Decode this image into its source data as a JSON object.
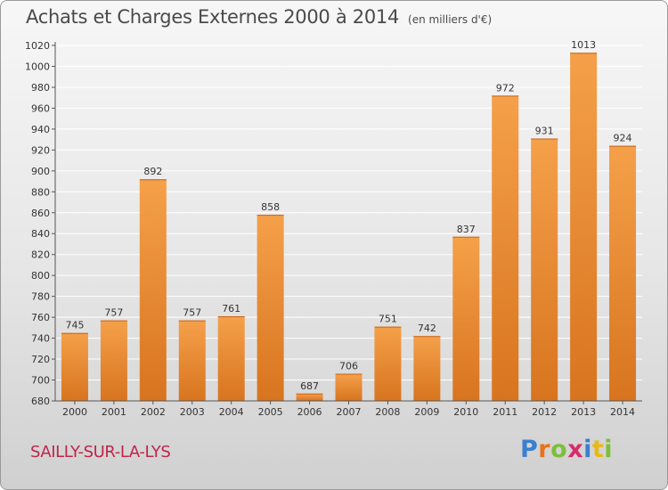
{
  "header": {
    "title": "Achats et Charges Externes 2000 à 2014",
    "subtitle": "(en milliers d'€)"
  },
  "footer": {
    "commune": "SAILLY-SUR-LA-LYS",
    "brand": [
      "P",
      "r",
      "o",
      "x",
      "i",
      "t",
      "i"
    ],
    "brand_colors": [
      "#3a7fd0",
      "#e8731a",
      "#7cbf3a",
      "#d62b6a",
      "#3a7fd0",
      "#e8b81a",
      "#7cbf3a"
    ]
  },
  "colors": {
    "bar_light": "#f5a04a",
    "bar_dark": "#d8741f",
    "grid": "#ffffff",
    "axis": "#555555"
  },
  "chart_data": {
    "type": "bar",
    "title": "Achats et Charges Externes 2000 à 2014",
    "subtitle": "(en milliers d'€)",
    "categories": [
      "2000",
      "2001",
      "2002",
      "2003",
      "2004",
      "2005",
      "2006",
      "2007",
      "2008",
      "2009",
      "2010",
      "2011",
      "2012",
      "2013",
      "2014"
    ],
    "values": [
      745,
      757,
      892,
      757,
      761,
      858,
      687,
      706,
      751,
      742,
      837,
      972,
      931,
      1013,
      924
    ],
    "ylim": [
      680,
      1020
    ],
    "yticks": [
      680,
      700,
      720,
      740,
      760,
      780,
      800,
      820,
      840,
      860,
      880,
      900,
      920,
      940,
      960,
      980,
      1000,
      1020
    ],
    "grid": true,
    "data_labels": true
  }
}
